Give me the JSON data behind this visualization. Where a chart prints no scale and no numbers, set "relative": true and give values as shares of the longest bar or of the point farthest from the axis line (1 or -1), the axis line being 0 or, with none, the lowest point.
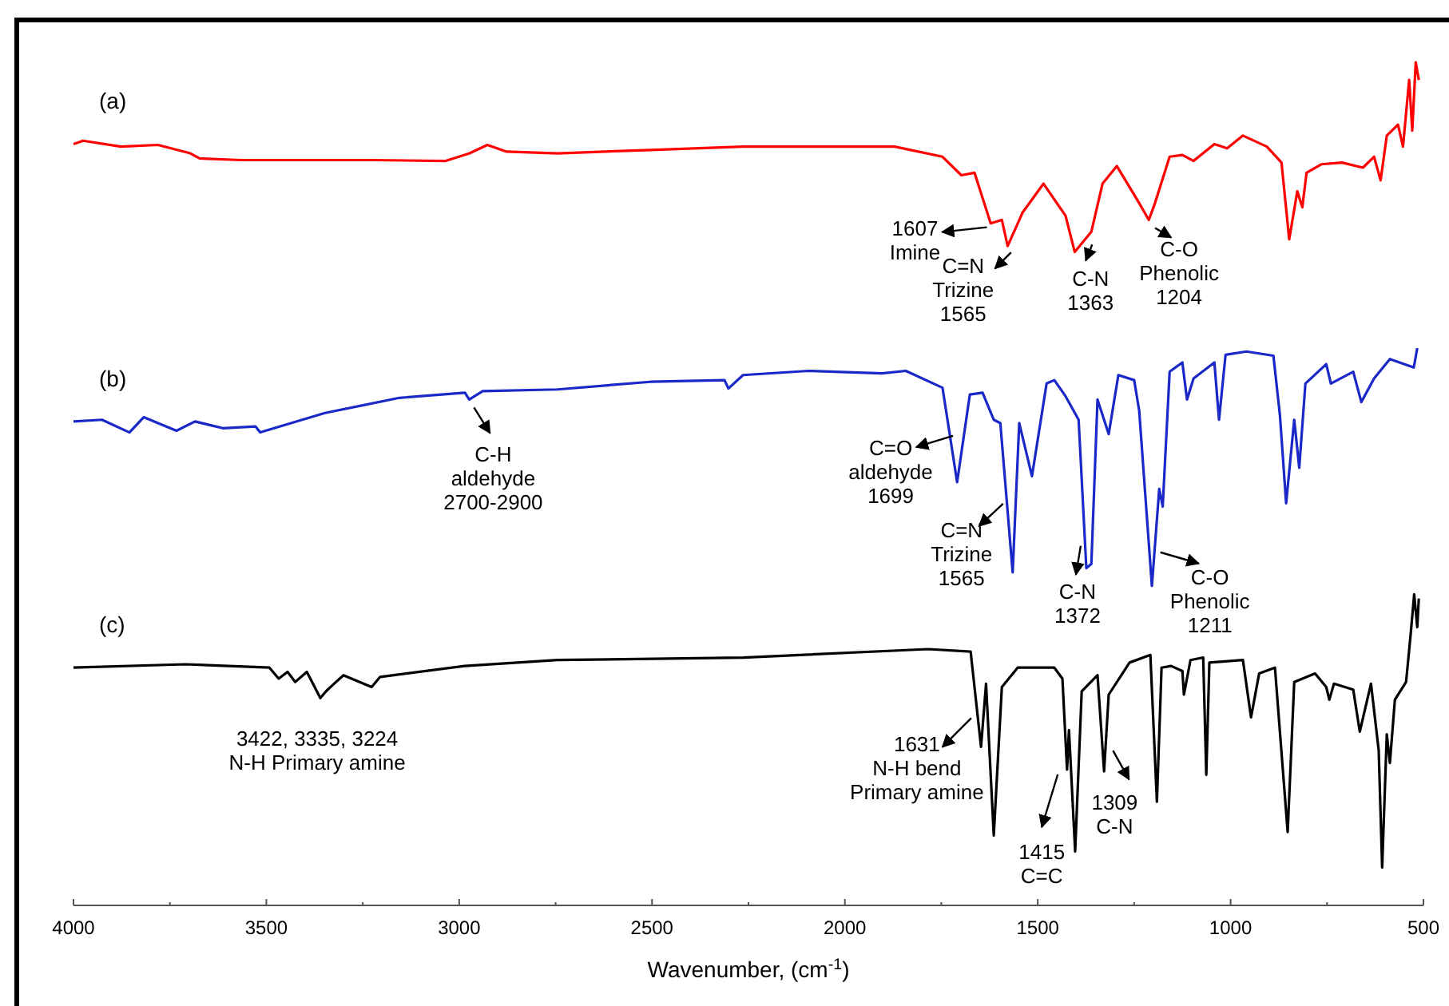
{
  "chart_data": {
    "type": "line",
    "relative": true,
    "xlabel": "Wavenumber, (cm$^{-1}$)",
    "xlim": [
      4000,
      500
    ],
    "xticks": [
      4000,
      {
        "value": 3750,
        "label": null
      },
      3500,
      {
        "value": 3250,
        "label": null
      },
      3000,
      {
        "value": 2750,
        "label": null
      },
      2500,
      {
        "value": 2250,
        "label": null
      },
      2000,
      {
        "value": 1750,
        "label": null
      },
      1500,
      {
        "value": 1250,
        "label": null
      },
      1000,
      {
        "value": 750,
        "label": null
      },
      500
    ],
    "series": [
      {
        "name": "(a)",
        "color": "#ff0000",
        "x": [
          4000,
          3975,
          3877,
          3781,
          3697,
          3673,
          3565,
          3225,
          3035,
          2973,
          2927,
          2877,
          2745,
          2505,
          2264,
          2024,
          1871,
          1747,
          1698,
          1664,
          1622,
          1593,
          1578,
          1539,
          1485,
          1428,
          1404,
          1361,
          1332,
          1295,
          1237,
          1212,
          1196,
          1158,
          1125,
          1096,
          1042,
          1009,
          968,
          906,
          868,
          848,
          827,
          814,
          803,
          765,
          711,
          657,
          628,
          611,
          595,
          566,
          553,
          537,
          529,
          520,
          512
        ],
        "values": [
          0.903,
          0.907,
          0.9,
          0.902,
          0.892,
          0.886,
          0.884,
          0.884,
          0.883,
          0.892,
          0.902,
          0.894,
          0.892,
          0.896,
          0.9,
          0.9,
          0.9,
          0.888,
          0.866,
          0.869,
          0.809,
          0.813,
          0.782,
          0.822,
          0.856,
          0.818,
          0.775,
          0.799,
          0.856,
          0.877,
          0.833,
          0.813,
          0.833,
          0.888,
          0.89,
          0.883,
          0.903,
          0.898,
          0.913,
          0.9,
          0.881,
          0.79,
          0.847,
          0.828,
          0.869,
          0.879,
          0.881,
          0.875,
          0.888,
          0.86,
          0.913,
          0.926,
          0.9,
          0.979,
          0.919,
          1.0,
          0.979
        ]
      },
      {
        "name": "(b)",
        "color": "#1a28c8",
        "x": [
          4000,
          3926,
          3855,
          3818,
          3733,
          3685,
          3613,
          3528,
          3516,
          3348,
          3155,
          2985,
          2974,
          2939,
          2745,
          2505,
          2312,
          2302,
          2264,
          2094,
          1904,
          1842,
          1747,
          1734,
          1709,
          1676,
          1643,
          1614,
          1597,
          1565,
          1548,
          1515,
          1477,
          1457,
          1428,
          1394,
          1374,
          1361,
          1345,
          1316,
          1291,
          1250,
          1237,
          1204,
          1185,
          1176,
          1158,
          1125,
          1113,
          1096,
          1042,
          1030,
          1013,
          959,
          889,
          872,
          856,
          835,
          822,
          806,
          752,
          740,
          682,
          661,
          628,
          587,
          525,
          516
        ],
        "values": [
          0.574,
          0.576,
          0.561,
          0.579,
          0.563,
          0.574,
          0.566,
          0.568,
          0.561,
          0.584,
          0.602,
          0.608,
          0.6,
          0.61,
          0.612,
          0.621,
          0.623,
          0.613,
          0.629,
          0.634,
          0.631,
          0.634,
          0.614,
          0.576,
          0.502,
          0.606,
          0.608,
          0.576,
          0.572,
          0.395,
          0.572,
          0.509,
          0.619,
          0.623,
          0.604,
          0.576,
          0.4,
          0.405,
          0.6,
          0.559,
          0.629,
          0.623,
          0.587,
          0.379,
          0.494,
          0.473,
          0.633,
          0.644,
          0.6,
          0.625,
          0.644,
          0.576,
          0.653,
          0.657,
          0.652,
          0.581,
          0.477,
          0.576,
          0.519,
          0.619,
          0.642,
          0.619,
          0.633,
          0.597,
          0.625,
          0.648,
          0.638,
          0.661
        ]
      },
      {
        "name": "(c)",
        "color": "#000000",
        "x": [
          4000,
          3710,
          3492,
          3468,
          3445,
          3425,
          3395,
          3360,
          3345,
          3329,
          3300,
          3227,
          3205,
          2986,
          2745,
          2264,
          1784,
          1674,
          1647,
          1634,
          1614,
          1593,
          1552,
          1457,
          1436,
          1424,
          1419,
          1403,
          1386,
          1345,
          1328,
          1316,
          1262,
          1208,
          1191,
          1179,
          1154,
          1125,
          1121,
          1104,
          1071,
          1063,
          1055,
          968,
          947,
          926,
          885,
          852,
          835,
          781,
          752,
          744,
          732,
          682,
          665,
          636,
          616,
          607,
          595,
          587,
          574,
          545,
          533,
          524,
          516,
          512
        ],
        "values": [
          0.282,
          0.286,
          0.282,
          0.269,
          0.277,
          0.265,
          0.277,
          0.246,
          0.254,
          0.261,
          0.273,
          0.259,
          0.271,
          0.284,
          0.291,
          0.294,
          0.304,
          0.301,
          0.188,
          0.263,
          0.083,
          0.259,
          0.282,
          0.282,
          0.269,
          0.161,
          0.208,
          0.064,
          0.254,
          0.273,
          0.159,
          0.25,
          0.288,
          0.297,
          0.123,
          0.282,
          0.284,
          0.278,
          0.25,
          0.291,
          0.294,
          0.155,
          0.288,
          0.291,
          0.223,
          0.275,
          0.282,
          0.087,
          0.265,
          0.275,
          0.259,
          0.244,
          0.263,
          0.256,
          0.206,
          0.263,
          0.184,
          0.045,
          0.203,
          0.169,
          0.244,
          0.265,
          0.322,
          0.369,
          0.33,
          0.364
        ]
      }
    ],
    "annotations": [
      {
        "text": "1607\nImine",
        "x": 1607,
        "y": 0.81
      },
      {
        "text": "C=N\nTrizine\n1565",
        "x": 1565,
        "y": 0.782
      },
      {
        "text": "C-N\n1363",
        "x": 1363,
        "y": 0.799
      },
      {
        "text": "C-O\nPhenolic\n1204",
        "x": 1204,
        "y": 0.813
      },
      {
        "text": "C-H\naldehyde\n2700-2900",
        "x": 2974,
        "y": 0.6
      },
      {
        "text": "C=O\naldehyde\n1699",
        "x": 1699,
        "y": 0.502
      },
      {
        "text": "C=N\nTrizine\n1565",
        "x": 1565,
        "y": 0.395
      },
      {
        "text": "C-N\n1372",
        "x": 1372,
        "y": 0.4
      },
      {
        "text": "C-O\nPhenolic\n1211",
        "x": 1211,
        "y": 0.379
      },
      {
        "text": "3422, 3335, 3224\nN-H Primary amine",
        "x": 3335,
        "y": 0.254
      },
      {
        "text": "1631\nN-H bend\nPrimary amine",
        "x": 1631,
        "y": 0.188
      },
      {
        "text": "1415\nC=C",
        "x": 1415,
        "y": 0.161
      },
      {
        "text": "1309\nC-N",
        "x": 1309,
        "y": 0.159
      }
    ]
  }
}
